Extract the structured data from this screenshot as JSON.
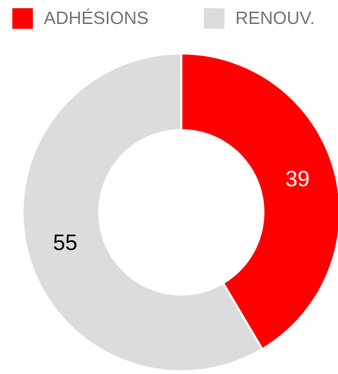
{
  "chart_data": {
    "type": "doughnut",
    "categories": [
      "ADHÉSIONS",
      "RENOUV."
    ],
    "values": [
      39,
      55
    ],
    "colors": [
      "#ff0000",
      "#dcdcdc"
    ],
    "label_colors": [
      "#ffffff",
      "#000000"
    ],
    "legend": "top"
  }
}
